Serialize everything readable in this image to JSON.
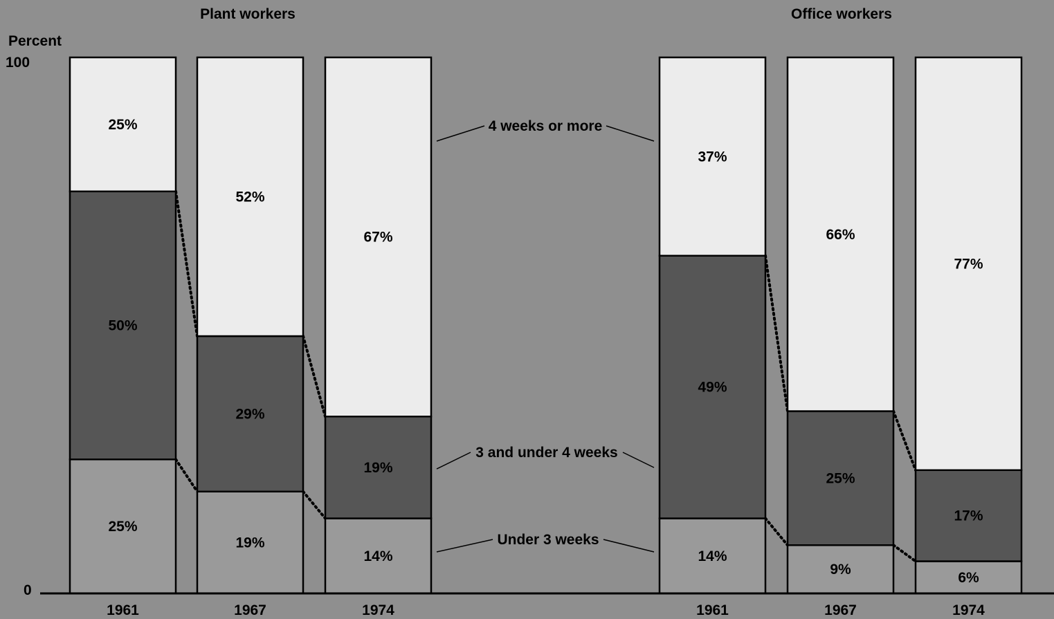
{
  "chart_data": {
    "type": "bar",
    "stacked": true,
    "ylabel": "Percent",
    "ylim": [
      0,
      100
    ],
    "yticks": [
      0,
      100
    ],
    "colors": {
      "background": "#8f8f8f",
      "Under 3 weeks": "#9a9a9a",
      "3 and under 4 weeks": "#565656",
      "4 weeks or more": "#ececec"
    },
    "series_order": [
      "Under 3 weeks",
      "3 and under 4 weeks",
      "4 weeks or more"
    ],
    "callouts": [
      "4 weeks or more",
      "3 and under 4 weeks",
      "Under 3 weeks"
    ],
    "panels": [
      {
        "title": "Plant workers",
        "categories": [
          "1961",
          "1967",
          "1974"
        ],
        "series": [
          {
            "name": "Under 3 weeks",
            "values": [
              25,
              19,
              14
            ]
          },
          {
            "name": "3 and under 4 weeks",
            "values": [
              50,
              29,
              19
            ]
          },
          {
            "name": "4 weeks or more",
            "values": [
              25,
              52,
              67
            ]
          }
        ]
      },
      {
        "title": "Office workers",
        "categories": [
          "1961",
          "1967",
          "1974"
        ],
        "series": [
          {
            "name": "Under 3 weeks",
            "values": [
              14,
              9,
              6
            ]
          },
          {
            "name": "3 and under 4 weeks",
            "values": [
              49,
              25,
              17
            ]
          },
          {
            "name": "4 weeks or more",
            "values": [
              37,
              66,
              77
            ]
          }
        ]
      }
    ]
  }
}
